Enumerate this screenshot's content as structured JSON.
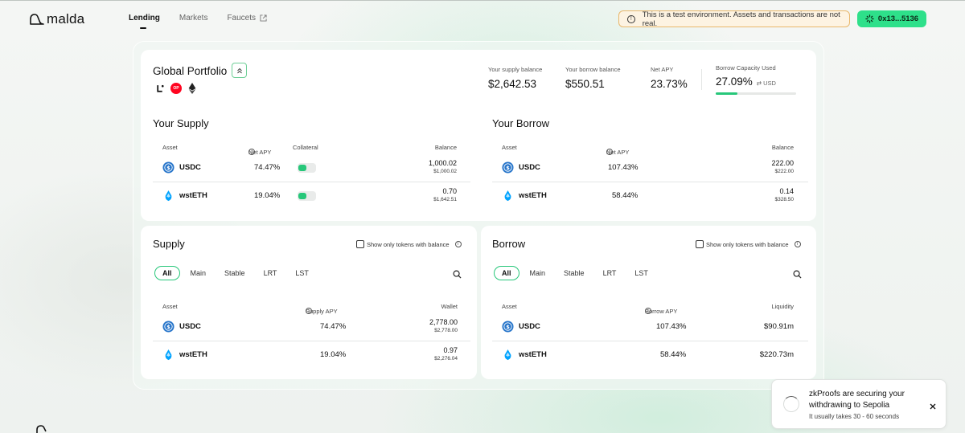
{
  "brand": {
    "logo_text": "malda"
  },
  "nav": {
    "lending": "Lending",
    "markets": "Markets",
    "faucets": "Faucets"
  },
  "banner": {
    "text": "This is a test environment. Assets and transactions are not real."
  },
  "wallet": {
    "label": "0x13...5136"
  },
  "colors": {
    "accent": "#2ee08a",
    "toggle_green": "#27c77a",
    "warning_border": "#e9b86c"
  },
  "portfolio": {
    "title": "Global Portfolio",
    "chains": [
      "linea-icon",
      "optimism-icon",
      "ethereum-icon"
    ],
    "optimism_label": "OP",
    "supply_balance_label": "Your supply balance",
    "supply_balance": "$2,642.53",
    "borrow_balance_label": "Your borrow balance",
    "borrow_balance": "$550.51",
    "net_apy_label": "Net APY",
    "net_apy": "23.73%",
    "borrow_capacity_label": "Borrow Capacity Used",
    "borrow_capacity": "27.09%",
    "borrow_capacity_fraction": 0.2709,
    "currency": "USD"
  },
  "your_supply": {
    "title": "Your Supply",
    "headers": {
      "asset": "Asset",
      "apy": "Net APY",
      "collateral": "Collateral",
      "balance": "Balance"
    },
    "rows": [
      {
        "asset": "USDC",
        "apy": "74.47%",
        "collateral": true,
        "balance": "1,000.02",
        "balance_usd": "$1,000.02"
      },
      {
        "asset": "wstETH",
        "apy": "19.04%",
        "collateral": true,
        "balance": "0.70",
        "balance_usd": "$1,642.51"
      }
    ]
  },
  "your_borrow": {
    "title": "Your Borrow",
    "headers": {
      "asset": "Asset",
      "apy": "Net APY",
      "balance": "Balance"
    },
    "rows": [
      {
        "asset": "USDC",
        "apy": "107.43%",
        "balance": "222.00",
        "balance_usd": "$222.00"
      },
      {
        "asset": "wstETH",
        "apy": "58.44%",
        "balance": "0.14",
        "balance_usd": "$328.50"
      }
    ]
  },
  "supply_market": {
    "title": "Supply",
    "filter_label": "Show only tokens with balance",
    "tabs": [
      "All",
      "Main",
      "Stable",
      "LRT",
      "LST"
    ],
    "active_tab": "All",
    "headers": {
      "asset": "Asset",
      "apy": "Supply APY",
      "wallet": "Wallet"
    },
    "rows": [
      {
        "asset": "USDC",
        "apy": "74.47%",
        "wallet": "2,778.00",
        "wallet_usd": "$2,778.00"
      },
      {
        "asset": "wstETH",
        "apy": "19.04%",
        "wallet": "0.97",
        "wallet_usd": "$2,276.04"
      }
    ]
  },
  "borrow_market": {
    "title": "Borrow",
    "filter_label": "Show only tokens with balance",
    "tabs": [
      "All",
      "Main",
      "Stable",
      "LRT",
      "LST"
    ],
    "active_tab": "All",
    "headers": {
      "asset": "Asset",
      "apy": "Borrow APY",
      "liquidity": "Liquidity"
    },
    "rows": [
      {
        "asset": "USDC",
        "apy": "107.43%",
        "liquidity": "$90.91m"
      },
      {
        "asset": "wstETH",
        "apy": "58.44%",
        "liquidity": "$220.73m"
      }
    ]
  },
  "toast": {
    "title": "zkProofs are securing your withdrawing to Sepolia",
    "subtitle": "It usually takes 30 - 60 seconds"
  }
}
